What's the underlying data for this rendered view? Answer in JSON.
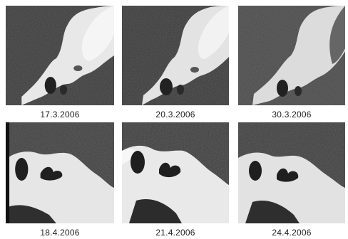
{
  "figure": {
    "panels": [
      {
        "date": "17.3.2006"
      },
      {
        "date": "20.3.2006"
      },
      {
        "date": "30.3.2006"
      },
      {
        "date": "18.4.2006"
      },
      {
        "date": "21.4.2006"
      },
      {
        "date": "24.4.2006"
      }
    ]
  }
}
